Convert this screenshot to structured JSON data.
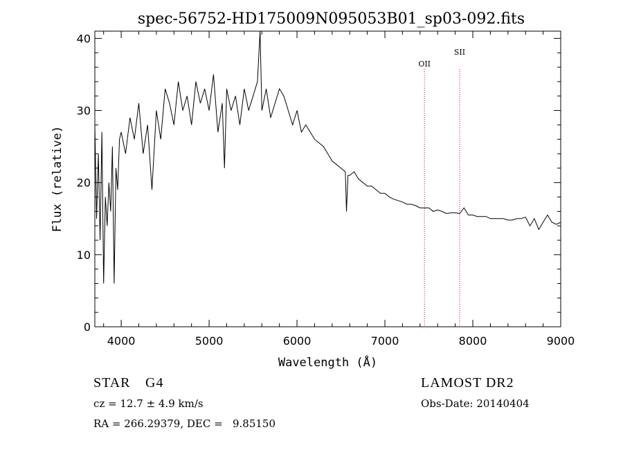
{
  "chart_data": {
    "type": "line",
    "title": "spec-56752-HD175009N095053B01_sp03-092.fits",
    "xlabel": "Wavelength (Å)",
    "ylabel": "Flux (relative)",
    "xlim": [
      3700,
      9000
    ],
    "ylim": [
      0,
      41
    ],
    "xticks": [
      4000,
      5000,
      6000,
      7000,
      8000,
      9000
    ],
    "yticks": [
      0,
      10,
      20,
      30,
      40
    ],
    "grid": false,
    "line_color": "#000000",
    "marker_color": "#cc0000",
    "series": [
      {
        "x": [
          3700,
          3720,
          3740,
          3760,
          3780,
          3800,
          3820,
          3840,
          3860,
          3880,
          3900,
          3920,
          3940,
          3960,
          3980,
          4000,
          4050,
          4100,
          4150,
          4200,
          4250,
          4300,
          4350,
          4400,
          4450,
          4500,
          4550,
          4600,
          4650,
          4700,
          4750,
          4800,
          4850,
          4900,
          4950,
          5000,
          5050,
          5100,
          5150,
          5175,
          5200,
          5250,
          5300,
          5350,
          5400,
          5450,
          5500,
          5550,
          5580,
          5600,
          5650,
          5700,
          5750,
          5800,
          5850,
          5900,
          5950,
          6000,
          6050,
          6100,
          6150,
          6200,
          6250,
          6300,
          6350,
          6400,
          6450,
          6500,
          6550,
          6563,
          6580,
          6600,
          6650,
          6700,
          6750,
          6800,
          6850,
          6900,
          6950,
          7000,
          7050,
          7100,
          7150,
          7200,
          7250,
          7300,
          7350,
          7400,
          7450,
          7500,
          7550,
          7600,
          7650,
          7700,
          7750,
          7800,
          7850,
          7900,
          7950,
          8000,
          8050,
          8100,
          8150,
          8200,
          8250,
          8300,
          8350,
          8400,
          8450,
          8500,
          8550,
          8600,
          8650,
          8700,
          8750,
          8800,
          8850,
          8900,
          8950,
          9000
        ],
        "y": [
          28,
          15,
          24,
          12,
          27,
          6,
          18,
          14,
          20,
          16,
          25,
          6,
          22,
          19,
          26,
          27,
          24,
          29,
          26,
          31,
          24,
          28,
          19,
          30,
          26,
          33,
          31,
          28,
          34,
          30,
          32,
          28,
          34,
          31,
          33,
          30,
          35,
          27,
          31,
          22,
          33,
          30,
          32,
          28,
          33,
          30,
          32,
          34,
          41,
          30,
          33,
          29,
          31,
          33,
          32,
          30,
          28,
          30,
          27,
          28,
          27,
          26,
          25.5,
          25,
          24,
          23,
          22.5,
          22,
          21.5,
          16,
          21,
          21,
          21.5,
          20.5,
          20,
          19.5,
          19.5,
          19,
          18.5,
          18.5,
          18,
          17.7,
          17.5,
          17.3,
          17,
          17,
          16.8,
          16.5,
          16.5,
          16.5,
          16,
          16.2,
          16,
          15.7,
          15.8,
          15.8,
          15.7,
          16.5,
          15.5,
          15.5,
          15.3,
          15.3,
          15.3,
          15,
          15,
          15,
          15,
          14.8,
          14.8,
          15,
          15,
          15.2,
          14,
          15,
          13.5,
          14.5,
          15.5,
          14.5,
          14.2,
          14.5
        ]
      }
    ],
    "annotations": [
      {
        "label": "OII",
        "x": 7450
      },
      {
        "label": "SII",
        "x": 7850
      }
    ]
  },
  "info": {
    "object_type": "STAR",
    "subclass": "G4",
    "cz": "cz = 12.7 ± 4.9 km/s",
    "coords": "RA = 266.29379, DEC =   9.85150",
    "survey": "LAMOST DR2",
    "obs_date": "Obs-Date: 20140404"
  }
}
